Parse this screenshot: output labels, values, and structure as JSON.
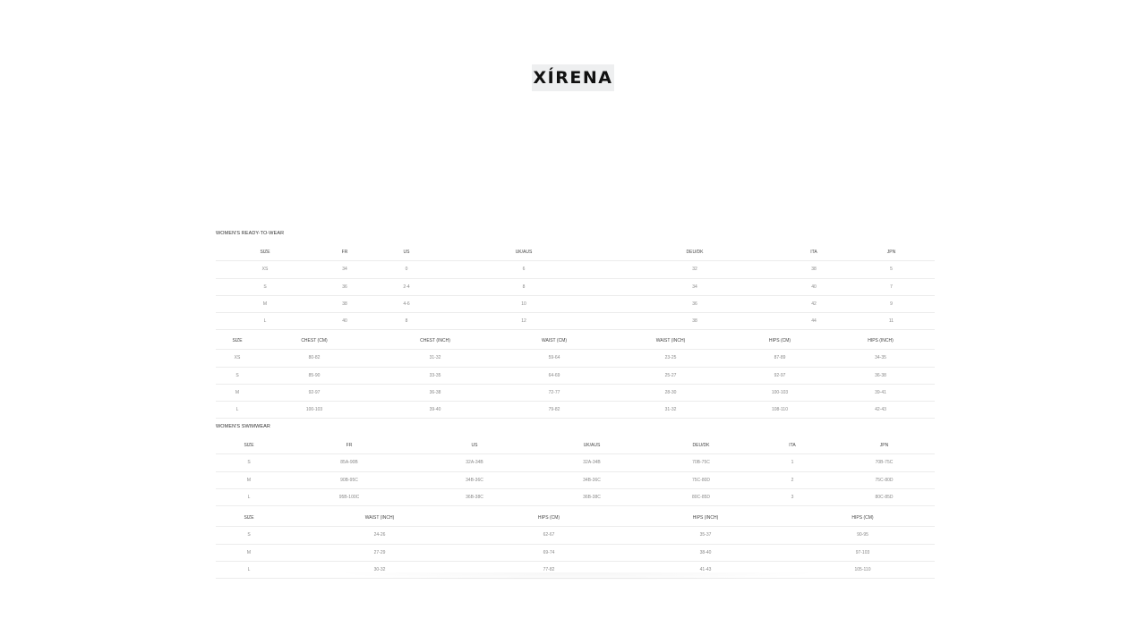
{
  "logo": {
    "text": "XÍRENA"
  },
  "sections": [
    {
      "title": "WOMEN'S READY-TO-WEAR"
    },
    {
      "title": "WOMEN'S SWIMWEAR"
    }
  ],
  "tables": [
    {
      "headers": [
        "SIZE",
        "FR",
        "US",
        "UK/AUS",
        "DEU/DK",
        "ITA",
        "JPN"
      ],
      "rows": [
        [
          "XS",
          "34",
          "0",
          "6",
          "32",
          "38",
          "5"
        ],
        [
          "S",
          "36",
          "2-4",
          "8",
          "34",
          "40",
          "7"
        ],
        [
          "M",
          "38",
          "4-6",
          "10",
          "36",
          "42",
          "9"
        ],
        [
          "L",
          "40",
          "8",
          "12",
          "38",
          "44",
          "11"
        ]
      ]
    },
    {
      "headers": [
        "SIZE",
        "CHEST (CM)",
        "CHEST (INCH)",
        "WAIST (CM)",
        "WAIST (INCH)",
        "HIPS (CM)",
        "HIPS (INCH)"
      ],
      "rows": [
        [
          "XS",
          "80-82",
          "31-32",
          "59-64",
          "23-25",
          "87-89",
          "34-35"
        ],
        [
          "S",
          "85-90",
          "33-35",
          "64-69",
          "25-27",
          "92-97",
          "36-38"
        ],
        [
          "M",
          "92-97",
          "36-38",
          "72-77",
          "28-30",
          "100-103",
          "39-41"
        ],
        [
          "L",
          "100-103",
          "39-40",
          "79-82",
          "31-32",
          "108-110",
          "42-43"
        ]
      ]
    },
    {
      "headers": [
        "SIZE",
        "FR",
        "US",
        "UK/AUS",
        "DEU/DK",
        "ITA",
        "JPN"
      ],
      "rows": [
        [
          "S",
          "85A-90B",
          "32A-34B",
          "32A-34B",
          "70B-75C",
          "1",
          "70B-75C"
        ],
        [
          "M",
          "90B-95C",
          "34B-36C",
          "34B-36C",
          "75C-80D",
          "2",
          "75C-80D"
        ],
        [
          "L",
          "95B-100C",
          "36B-38C",
          "36B-38C",
          "80C-85D",
          "3",
          "80C-85D"
        ]
      ]
    },
    {
      "headers": [
        "SIZE",
        "WAIST (INCH)",
        "HIPS (CM)",
        "HIPS (INCH)",
        "HIPS (CM)"
      ],
      "rows": [
        [
          "S",
          "24-26",
          "62-67",
          "35-37",
          "90-95"
        ],
        [
          "M",
          "27-29",
          "69-74",
          "38-40",
          "97-103"
        ],
        [
          "L",
          "30-32",
          "77-82",
          "41-43",
          "105-110"
        ]
      ]
    }
  ]
}
